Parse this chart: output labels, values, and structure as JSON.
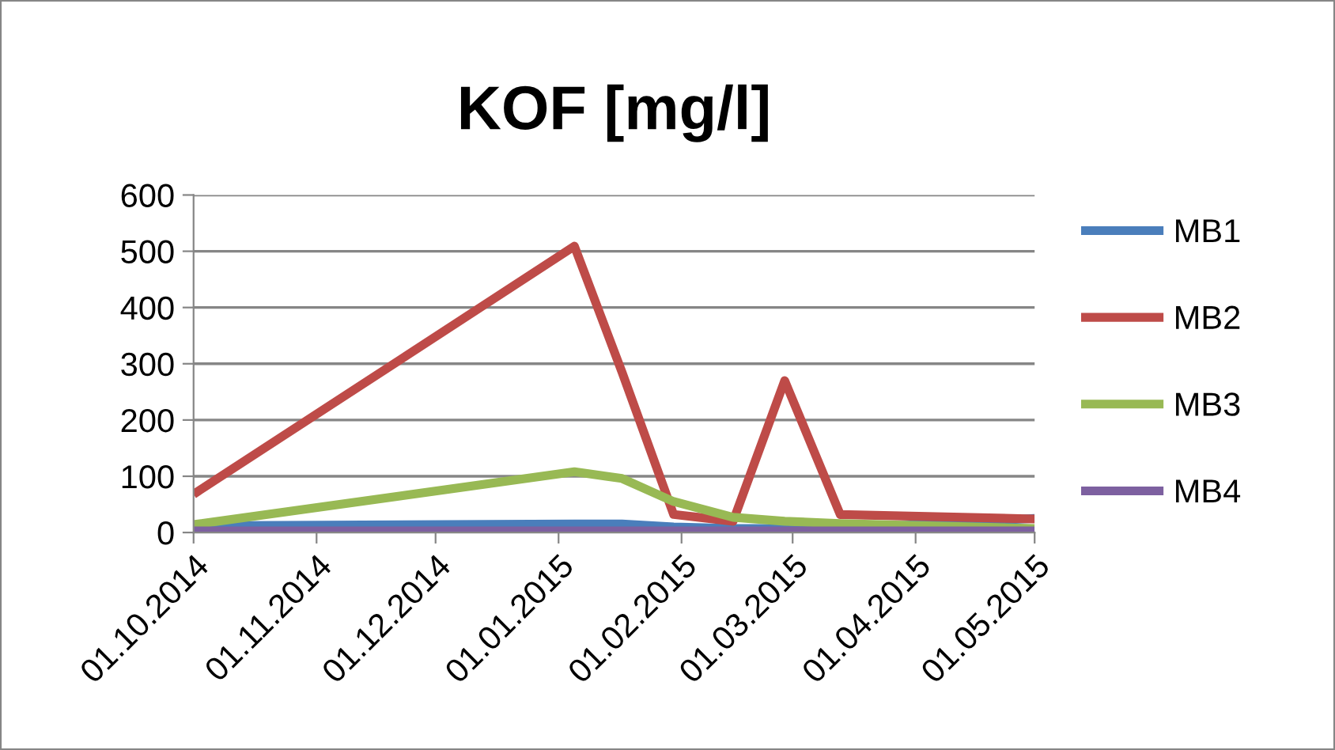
{
  "chart_data": {
    "type": "line",
    "title": "KOF [mg/l]",
    "x": [
      "2014-10-01",
      "2015-01-05",
      "2015-01-17",
      "2015-01-30",
      "2015-02-14",
      "2015-02-27",
      "2015-03-13",
      "2015-05-01"
    ],
    "series": [
      {
        "name": "MB1",
        "color": "#4a7ebb",
        "values": [
          12,
          15,
          15,
          10,
          7,
          7,
          7,
          25
        ]
      },
      {
        "name": "MB2",
        "color": "#be4b48",
        "values": [
          68,
          509,
          285,
          32,
          20,
          270,
          32,
          24
        ]
      },
      {
        "name": "MB3",
        "color": "#98b954",
        "values": [
          14,
          108,
          96,
          55,
          27,
          20,
          16,
          7
        ]
      },
      {
        "name": "MB4",
        "color": "#7d60a0",
        "values": [
          3,
          3,
          3,
          3,
          3,
          3,
          3,
          3
        ]
      }
    ],
    "xlim": [
      "2014-10-01",
      "2015-05-01"
    ],
    "xticks": [
      {
        "value": "2014-10-01",
        "label": "01.10.2014"
      },
      {
        "value": "2014-11-01",
        "label": "01.11.2014"
      },
      {
        "value": "2014-12-01",
        "label": "01.12.2014"
      },
      {
        "value": "2015-01-01",
        "label": "01.01.2015"
      },
      {
        "value": "2015-02-01",
        "label": "01.02.2015"
      },
      {
        "value": "2015-03-01",
        "label": "01.03.2015"
      },
      {
        "value": "2015-04-01",
        "label": "01.04.2015"
      },
      {
        "value": "2015-05-01",
        "label": "01.05.2015"
      }
    ],
    "ylim": [
      0,
      600
    ],
    "yticks": [
      0,
      100,
      200,
      300,
      400,
      500,
      600
    ],
    "grid": "y",
    "legend": "right",
    "marker": "none",
    "line_style": "solid"
  }
}
